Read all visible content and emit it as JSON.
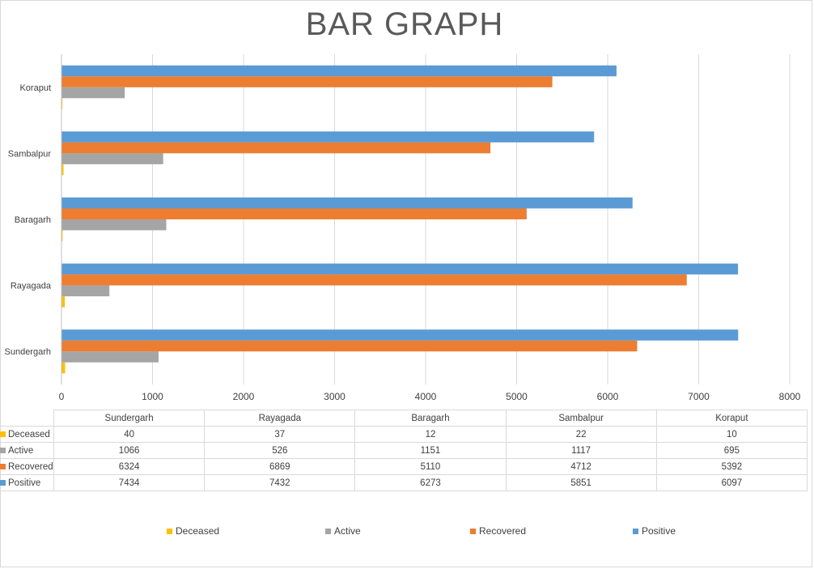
{
  "chart_data": {
    "type": "bar",
    "orientation": "horizontal",
    "title": "BAR GRAPH",
    "categories": [
      "Sundergarh",
      "Rayagada",
      "Baragarh",
      "Sambalpur",
      "Koraput"
    ],
    "series": [
      {
        "name": "Deceased",
        "color": "#FFC000",
        "values": [
          40,
          37,
          12,
          22,
          10
        ]
      },
      {
        "name": "Active",
        "color": "#A5A5A5",
        "values": [
          1066,
          526,
          1151,
          1117,
          695
        ]
      },
      {
        "name": "Recovered",
        "color": "#ED7D31",
        "values": [
          6324,
          6869,
          5110,
          4712,
          5392
        ]
      },
      {
        "name": "Positive",
        "color": "#5B9BD5",
        "values": [
          7434,
          7432,
          6273,
          5851,
          6097
        ]
      }
    ],
    "xlim": [
      0,
      8000
    ],
    "x_ticks": [
      0,
      1000,
      2000,
      3000,
      4000,
      5000,
      6000,
      7000,
      8000
    ],
    "grid": true,
    "legend": "bottom",
    "data_table": true
  }
}
